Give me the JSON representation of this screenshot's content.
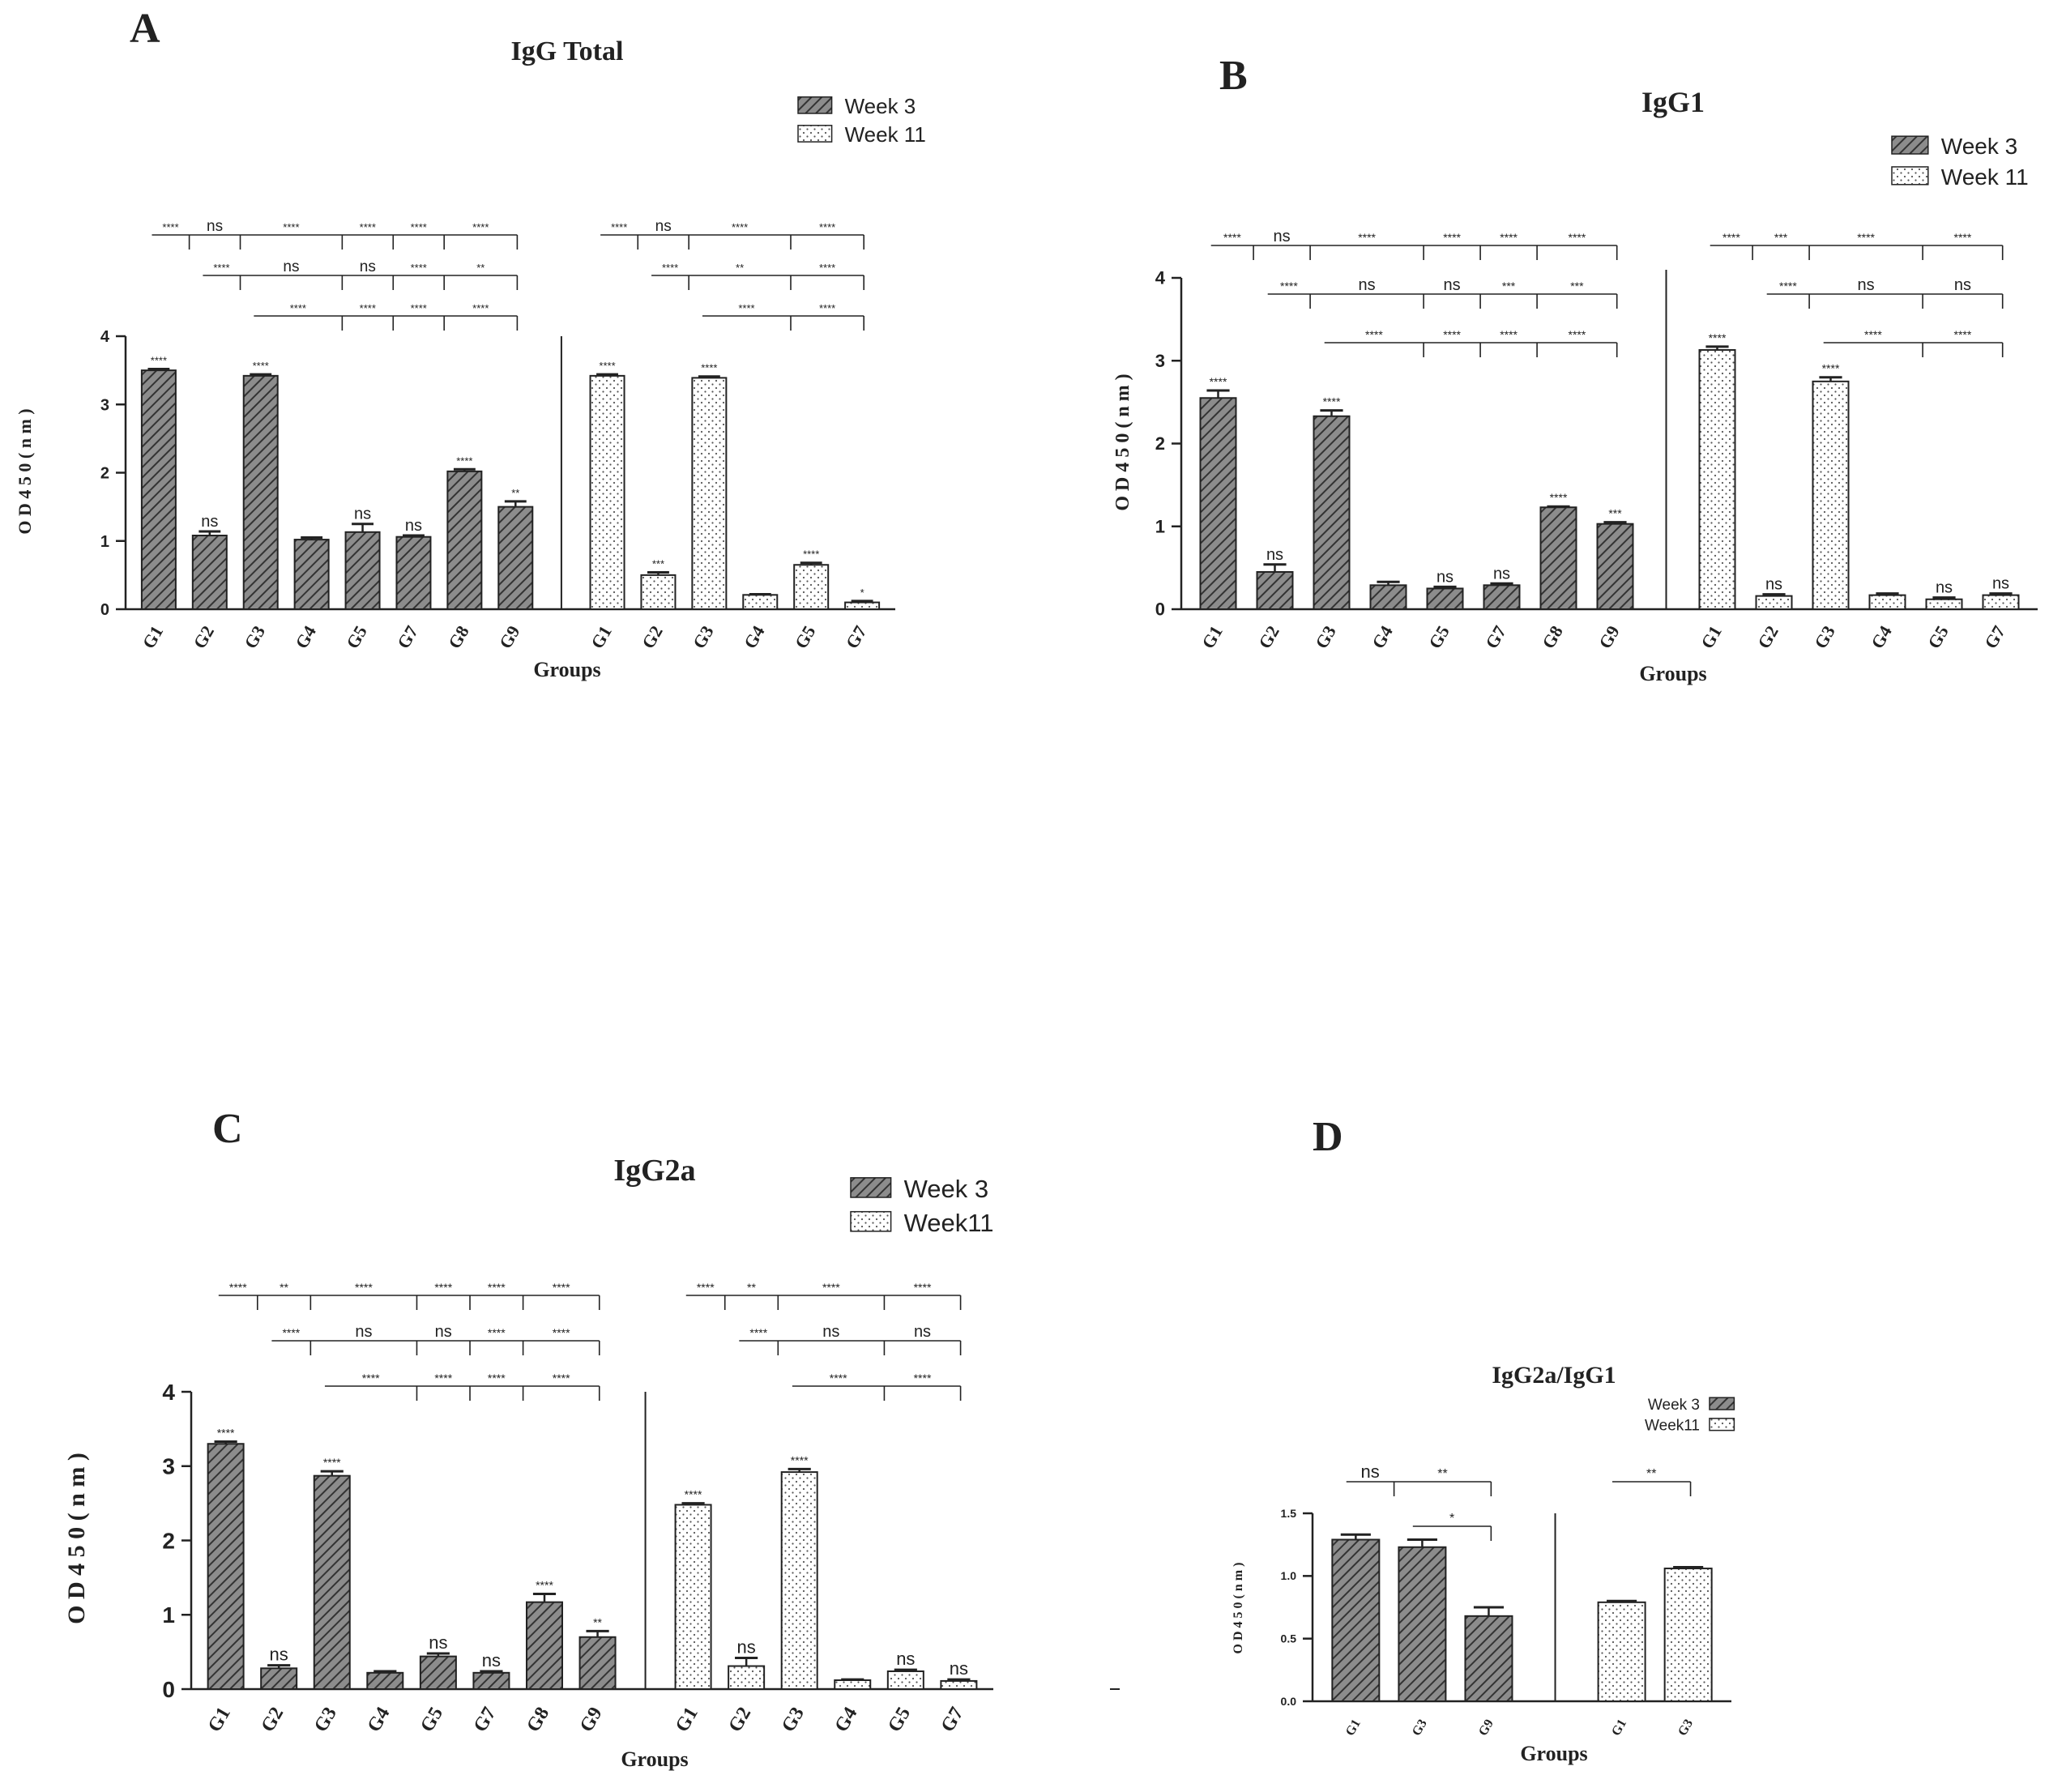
{
  "colors": {
    "ink": "#222222",
    "bar_fill_week3": "#8c8c8c",
    "bar_fill_week11": "#ffffff"
  },
  "chart_data": [
    {
      "type": "bar",
      "panel_label": "A",
      "title": "IgG Total",
      "xlabel": "Groups",
      "ylabel": "O D 4 5 0 ( n m )",
      "ylim": [
        0,
        4
      ],
      "yticks": [
        "0",
        "1",
        "2",
        "3",
        "4"
      ],
      "legend": [
        "Week 3",
        "Week 11"
      ],
      "groups": [
        {
          "name": "Week 3",
          "pattern": "hatch",
          "categories": [
            "G1",
            "G2",
            "G3",
            "G4",
            "G5",
            "G7",
            "G8",
            "G9"
          ],
          "values": [
            3.5,
            1.08,
            3.42,
            1.02,
            1.13,
            1.06,
            2.02,
            1.5
          ],
          "errors": [
            0.02,
            0.06,
            0.02,
            0.03,
            0.12,
            0.02,
            0.03,
            0.08
          ],
          "labels": [
            "****",
            "ns",
            "****",
            "",
            "ns",
            "ns",
            "****",
            "**"
          ]
        },
        {
          "name": "Week 11",
          "pattern": "dots",
          "categories": [
            "G1",
            "G2",
            "G3",
            "G4",
            "G5",
            "G7"
          ],
          "values": [
            3.42,
            0.5,
            3.39,
            0.21,
            0.65,
            0.1
          ],
          "errors": [
            0.02,
            0.04,
            0.02,
            0.01,
            0.03,
            0.02
          ],
          "labels": [
            "****",
            "***",
            "****",
            "",
            "****",
            "*"
          ]
        }
      ],
      "comparisons": [
        {
          "group": 0,
          "from": 0,
          "drops": [
            1,
            2,
            4,
            5,
            6,
            7
          ],
          "labels": [
            "****",
            "ns",
            "****",
            "****",
            "****",
            "****"
          ]
        },
        {
          "group": 0,
          "from": 1,
          "drops": [
            2,
            4,
            5,
            6,
            7
          ],
          "labels": [
            "****",
            "ns",
            "ns",
            "****",
            "**"
          ]
        },
        {
          "group": 0,
          "from": 2,
          "drops": [
            4,
            5,
            6,
            7
          ],
          "labels": [
            "****",
            "****",
            "****",
            "****"
          ]
        },
        {
          "group": 1,
          "from": 0,
          "drops": [
            1,
            2,
            4,
            5
          ],
          "labels": [
            "****",
            "ns",
            "****",
            "****"
          ]
        },
        {
          "group": 1,
          "from": 1,
          "drops": [
            2,
            4,
            5
          ],
          "labels": [
            "****",
            "**",
            "****"
          ]
        },
        {
          "group": 1,
          "from": 2,
          "drops": [
            4,
            5
          ],
          "labels": [
            "****",
            "****"
          ]
        }
      ]
    },
    {
      "type": "bar",
      "panel_label": "B",
      "title": "IgG1",
      "xlabel": "Groups",
      "ylabel": "O D 4 5 0 ( n m )",
      "ylim": [
        0,
        4
      ],
      "yticks": [
        "0",
        "1",
        "2",
        "3",
        "4"
      ],
      "legend": [
        "Week 3",
        "Week 11"
      ],
      "groups": [
        {
          "name": "Week 3",
          "pattern": "hatch",
          "categories": [
            "G1",
            "G2",
            "G3",
            "G4",
            "G5",
            "G7",
            "G8",
            "G9"
          ],
          "values": [
            2.55,
            0.45,
            2.33,
            0.29,
            0.25,
            0.29,
            1.23,
            1.03
          ],
          "errors": [
            0.09,
            0.09,
            0.07,
            0.04,
            0.02,
            0.02,
            0.01,
            0.02
          ],
          "labels": [
            "****",
            "ns",
            "****",
            "",
            "ns",
            "ns",
            "****",
            "***"
          ]
        },
        {
          "name": "Week 11",
          "pattern": "dots",
          "categories": [
            "G1",
            "G2",
            "G3",
            "G4",
            "G5",
            "G7"
          ],
          "values": [
            3.13,
            0.16,
            2.75,
            0.17,
            0.12,
            0.17
          ],
          "errors": [
            0.04,
            0.02,
            0.05,
            0.02,
            0.02,
            0.02
          ],
          "labels": [
            "****",
            "ns",
            "****",
            "",
            "ns",
            "ns"
          ]
        }
      ],
      "comparisons": [
        {
          "group": 0,
          "from": 0,
          "drops": [
            1,
            2,
            4,
            5,
            6,
            7
          ],
          "labels": [
            "****",
            "ns",
            "****",
            "****",
            "****",
            "****"
          ]
        },
        {
          "group": 0,
          "from": 1,
          "drops": [
            2,
            4,
            5,
            6,
            7
          ],
          "labels": [
            "****",
            "ns",
            "ns",
            "***",
            "***"
          ]
        },
        {
          "group": 0,
          "from": 2,
          "drops": [
            4,
            5,
            6,
            7
          ],
          "labels": [
            "****",
            "****",
            "****",
            "****"
          ]
        },
        {
          "group": 1,
          "from": 0,
          "drops": [
            1,
            2,
            4,
            5
          ],
          "labels": [
            "****",
            "***",
            "****",
            "****"
          ]
        },
        {
          "group": 1,
          "from": 1,
          "drops": [
            2,
            4,
            5
          ],
          "labels": [
            "****",
            "ns",
            "ns"
          ]
        },
        {
          "group": 1,
          "from": 2,
          "drops": [
            4,
            5
          ],
          "labels": [
            "****",
            "****"
          ]
        }
      ]
    },
    {
      "type": "bar",
      "panel_label": "C",
      "title": "IgG2a",
      "xlabel": "Groups",
      "ylabel": "O D 4 5 0 ( n m )",
      "ylim": [
        0,
        4
      ],
      "yticks": [
        "0",
        "1",
        "2",
        "3",
        "4"
      ],
      "legend": [
        "Week 3",
        "Week11"
      ],
      "groups": [
        {
          "name": "Week 3",
          "pattern": "hatch",
          "categories": [
            "G1",
            "G2",
            "G3",
            "G4",
            "G5",
            "G7",
            "G8",
            "G9"
          ],
          "values": [
            3.3,
            0.28,
            2.87,
            0.22,
            0.44,
            0.22,
            1.17,
            0.7
          ],
          "errors": [
            0.03,
            0.04,
            0.06,
            0.02,
            0.04,
            0.02,
            0.11,
            0.08
          ],
          "labels": [
            "****",
            "ns",
            "****",
            "",
            "ns",
            "ns",
            "****",
            "**"
          ]
        },
        {
          "name": "Week11",
          "pattern": "dots",
          "categories": [
            "G1",
            "G2",
            "G3",
            "G4",
            "G5",
            "G7"
          ],
          "values": [
            2.48,
            0.31,
            2.92,
            0.12,
            0.24,
            0.11
          ],
          "errors": [
            0.02,
            0.11,
            0.04,
            0.01,
            0.02,
            0.02
          ],
          "labels": [
            "****",
            "ns",
            "****",
            "",
            "ns",
            "ns"
          ]
        }
      ],
      "comparisons": [
        {
          "group": 0,
          "from": 0,
          "drops": [
            1,
            2,
            4,
            5,
            6,
            7
          ],
          "labels": [
            "****",
            "**",
            "****",
            "****",
            "****",
            "****"
          ]
        },
        {
          "group": 0,
          "from": 1,
          "drops": [
            2,
            4,
            5,
            6,
            7
          ],
          "labels": [
            "****",
            "ns",
            "ns",
            "****",
            "****"
          ]
        },
        {
          "group": 0,
          "from": 2,
          "drops": [
            4,
            5,
            6,
            7
          ],
          "labels": [
            "****",
            "****",
            "****",
            "****"
          ]
        },
        {
          "group": 1,
          "from": 0,
          "drops": [
            1,
            2,
            4,
            5
          ],
          "labels": [
            "****",
            "**",
            "****",
            "****"
          ]
        },
        {
          "group": 1,
          "from": 1,
          "drops": [
            2,
            4,
            5
          ],
          "labels": [
            "****",
            "ns",
            "ns"
          ]
        },
        {
          "group": 1,
          "from": 2,
          "drops": [
            4,
            5
          ],
          "labels": [
            "****",
            "****"
          ]
        }
      ]
    },
    {
      "type": "bar",
      "panel_label": "D",
      "title": "IgG2a/IgG1",
      "xlabel": "Groups",
      "ylabel": "O D 4 5 0 ( n m )",
      "ylim": [
        0,
        1.5
      ],
      "yticks": [
        "0.0",
        "0.5",
        "1.0",
        "1.5"
      ],
      "legend": [
        "Week 3",
        "Week11"
      ],
      "groups": [
        {
          "name": "Week 3",
          "pattern": "hatch",
          "categories": [
            "G1",
            "G3",
            "G9"
          ],
          "values": [
            1.29,
            1.23,
            0.68
          ],
          "errors": [
            0.04,
            0.06,
            0.07
          ],
          "labels": [
            "",
            "",
            ""
          ]
        },
        {
          "name": "Week11",
          "pattern": "dots",
          "categories": [
            "G1",
            "G3"
          ],
          "values": [
            0.79,
            1.06
          ],
          "errors": [
            0.01,
            0.01
          ],
          "labels": [
            "",
            ""
          ]
        }
      ],
      "comparisons": [
        {
          "group": 0,
          "from": 0,
          "drops": [
            1,
            2
          ],
          "labels": [
            "ns",
            "**"
          ]
        },
        {
          "group": 0,
          "from": 1,
          "drops": [
            2
          ],
          "labels": [
            "*"
          ]
        },
        {
          "group": 1,
          "from": 0,
          "drops": [
            1
          ],
          "labels": [
            "**"
          ]
        }
      ]
    }
  ]
}
